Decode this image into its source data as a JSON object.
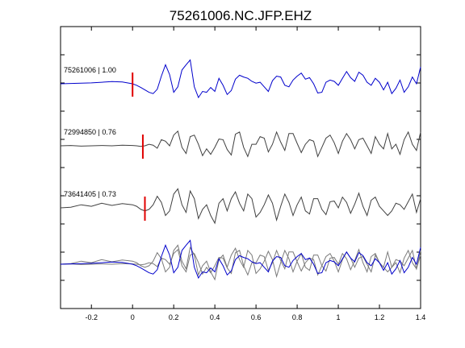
{
  "chart_data": {
    "type": "line",
    "title": "75261006.NC.JFP.EHZ",
    "xlabel": "",
    "ylabel": "",
    "xlim": [
      -0.35,
      1.4
    ],
    "x_ticks": [
      -0.2,
      0,
      0.2,
      0.4,
      0.6,
      0.8,
      1,
      1.2,
      1.4
    ],
    "x_tick_labels": [
      "-0.2",
      "0",
      "0.2",
      "0.4",
      "0.6",
      "0.8",
      "1",
      "1.2",
      "1.4"
    ],
    "grid": false,
    "traces": [
      {
        "label": "75261006 | 1.00",
        "color": "#0000cc",
        "pick_time": 0.0,
        "x": [
          -0.35,
          -0.3,
          -0.25,
          -0.2,
          -0.15,
          -0.1,
          -0.05,
          0,
          0.02,
          0.04,
          0.06,
          0.08,
          0.1,
          0.12,
          0.14,
          0.16,
          0.18,
          0.2,
          0.22,
          0.24,
          0.26,
          0.28,
          0.3,
          0.32,
          0.34,
          0.36,
          0.38,
          0.4,
          0.42,
          0.44,
          0.46,
          0.48,
          0.5,
          0.52,
          0.54,
          0.56,
          0.58,
          0.6,
          0.62,
          0.64,
          0.66,
          0.68,
          0.7,
          0.72,
          0.74,
          0.76,
          0.78,
          0.8,
          0.82,
          0.84,
          0.86,
          0.88,
          0.9,
          0.92,
          0.94,
          0.96,
          0.98,
          1,
          1.02,
          1.04,
          1.06,
          1.08,
          1.1,
          1.12,
          1.14,
          1.16,
          1.18,
          1.2,
          1.22,
          1.24,
          1.26,
          1.28,
          1.3,
          1.32,
          1.34,
          1.36,
          1.38,
          1.4
        ],
        "y": [
          0,
          0.01,
          0.02,
          0.03,
          0.05,
          0.07,
          0.06,
          0,
          -0.05,
          -0.12,
          -0.2,
          -0.28,
          -0.32,
          -0.18,
          0.25,
          0.62,
          0.3,
          -0.28,
          -0.1,
          0.45,
          0.62,
          0.78,
          -0.1,
          -0.45,
          -0.25,
          -0.28,
          -0.12,
          -0.25,
          0.18,
          -0.05,
          -0.35,
          -0.22,
          0.15,
          0.28,
          0.22,
          0.18,
          0.08,
          0.02,
          0.05,
          -0.1,
          -0.25,
          0.1,
          0.25,
          0.22,
          -0.05,
          -0.1,
          0.12,
          0.25,
          0.35,
          0.15,
          0.2,
          0.0,
          -0.3,
          -0.28,
          0.05,
          0.12,
          0.08,
          -0.05,
          0.18,
          0.4,
          0.2,
          0.08,
          0.38,
          0.28,
          0.05,
          -0.05,
          0.18,
          0.05,
          -0.2,
          0.05,
          -0.32,
          -0.15,
          0.12,
          -0.28,
          -0.1,
          0.22,
          0.0,
          0.55
        ]
      },
      {
        "label": "72994850 | 0.76",
        "color": "#404040",
        "pick_time": 0.05,
        "x": [
          -0.35,
          -0.3,
          -0.25,
          -0.2,
          -0.15,
          -0.1,
          -0.05,
          0,
          0.02,
          0.04,
          0.06,
          0.08,
          0.1,
          0.12,
          0.14,
          0.16,
          0.18,
          0.2,
          0.22,
          0.24,
          0.26,
          0.28,
          0.3,
          0.32,
          0.34,
          0.36,
          0.38,
          0.4,
          0.42,
          0.44,
          0.46,
          0.48,
          0.5,
          0.52,
          0.54,
          0.56,
          0.58,
          0.6,
          0.62,
          0.64,
          0.66,
          0.68,
          0.7,
          0.72,
          0.74,
          0.76,
          0.78,
          0.8,
          0.82,
          0.84,
          0.86,
          0.88,
          0.9,
          0.92,
          0.94,
          0.96,
          0.98,
          1,
          1.02,
          1.04,
          1.06,
          1.08,
          1.1,
          1.12,
          1.14,
          1.16,
          1.18,
          1.2,
          1.22,
          1.24,
          1.26,
          1.28,
          1.3,
          1.32,
          1.34,
          1.36,
          1.38,
          1.4
        ],
        "y": [
          0,
          0.01,
          -0.01,
          0.0,
          0.01,
          0.0,
          0.02,
          0.01,
          0.0,
          -0.02,
          0.0,
          0.05,
          0.02,
          -0.08,
          0.2,
          0.15,
          0.0,
          0.35,
          0.48,
          -0.05,
          -0.25,
          0.3,
          0.35,
          0.05,
          -0.32,
          -0.1,
          -0.28,
          -0.05,
          0.22,
          0.2,
          -0.12,
          -0.3,
          0.38,
          0.45,
          -0.05,
          -0.35,
          0.05,
          0.05,
          0.3,
          0.25,
          -0.2,
          0.05,
          0.45,
          0.12,
          -0.15,
          0.4,
          0.4,
          0.08,
          -0.22,
          0.05,
          0.2,
          0.15,
          -0.35,
          -0.05,
          0.25,
          0.35,
          0.1,
          -0.25,
          0.15,
          0.4,
          0.2,
          -0.1,
          0.2,
          0.25,
          0.0,
          -0.25,
          0.3,
          0.05,
          -0.1,
          0.4,
          -0.1,
          0.05,
          -0.28,
          0.2,
          0.45,
          0.05,
          -0.15,
          0.45
        ]
      },
      {
        "label": "73641405 | 0.73",
        "color": "#404040",
        "pick_time": 0.06,
        "x": [
          -0.35,
          -0.3,
          -0.25,
          -0.2,
          -0.15,
          -0.1,
          -0.05,
          0,
          0.02,
          0.04,
          0.06,
          0.08,
          0.1,
          0.12,
          0.14,
          0.16,
          0.18,
          0.2,
          0.22,
          0.24,
          0.26,
          0.28,
          0.3,
          0.32,
          0.34,
          0.36,
          0.38,
          0.4,
          0.42,
          0.44,
          0.46,
          0.48,
          0.5,
          0.52,
          0.54,
          0.56,
          0.58,
          0.6,
          0.62,
          0.64,
          0.66,
          0.68,
          0.7,
          0.72,
          0.74,
          0.76,
          0.78,
          0.8,
          0.82,
          0.84,
          0.86,
          0.88,
          0.9,
          0.92,
          0.94,
          0.96,
          0.98,
          1,
          1.02,
          1.04,
          1.06,
          1.08,
          1.1,
          1.12,
          1.14,
          1.16,
          1.18,
          1.2,
          1.22,
          1.24,
          1.26,
          1.28,
          1.3,
          1.32,
          1.34,
          1.36,
          1.38,
          1.4
        ],
        "y": [
          0,
          0.02,
          0.1,
          0.05,
          0.15,
          0.08,
          0.14,
          0.1,
          0.05,
          -0.05,
          -0.1,
          -0.05,
          0.1,
          0.38,
          0.18,
          -0.25,
          -0.1,
          0.45,
          0.62,
          0.1,
          -0.15,
          0.55,
          0.3,
          -0.35,
          -0.05,
          0.1,
          -0.25,
          -0.5,
          0.15,
          0.3,
          -0.1,
          0.3,
          0.52,
          0.15,
          -0.1,
          0.45,
          0.3,
          -0.3,
          -0.15,
          0.1,
          0.42,
          0.15,
          -0.4,
          0.05,
          0.45,
          0.18,
          -0.25,
          0.1,
          0.35,
          -0.1,
          -0.2,
          0.3,
          0.3,
          -0.05,
          -0.22,
          0.2,
          0.22,
          0.0,
          0.35,
          0.18,
          -0.18,
          0.12,
          0.48,
          0.05,
          -0.25,
          0.25,
          0.35,
          0.05,
          -0.1,
          -0.25,
          -0.1,
          0.15,
          0.1,
          -0.05,
          0.2,
          0.45,
          -0.15,
          0.3
        ]
      }
    ]
  }
}
